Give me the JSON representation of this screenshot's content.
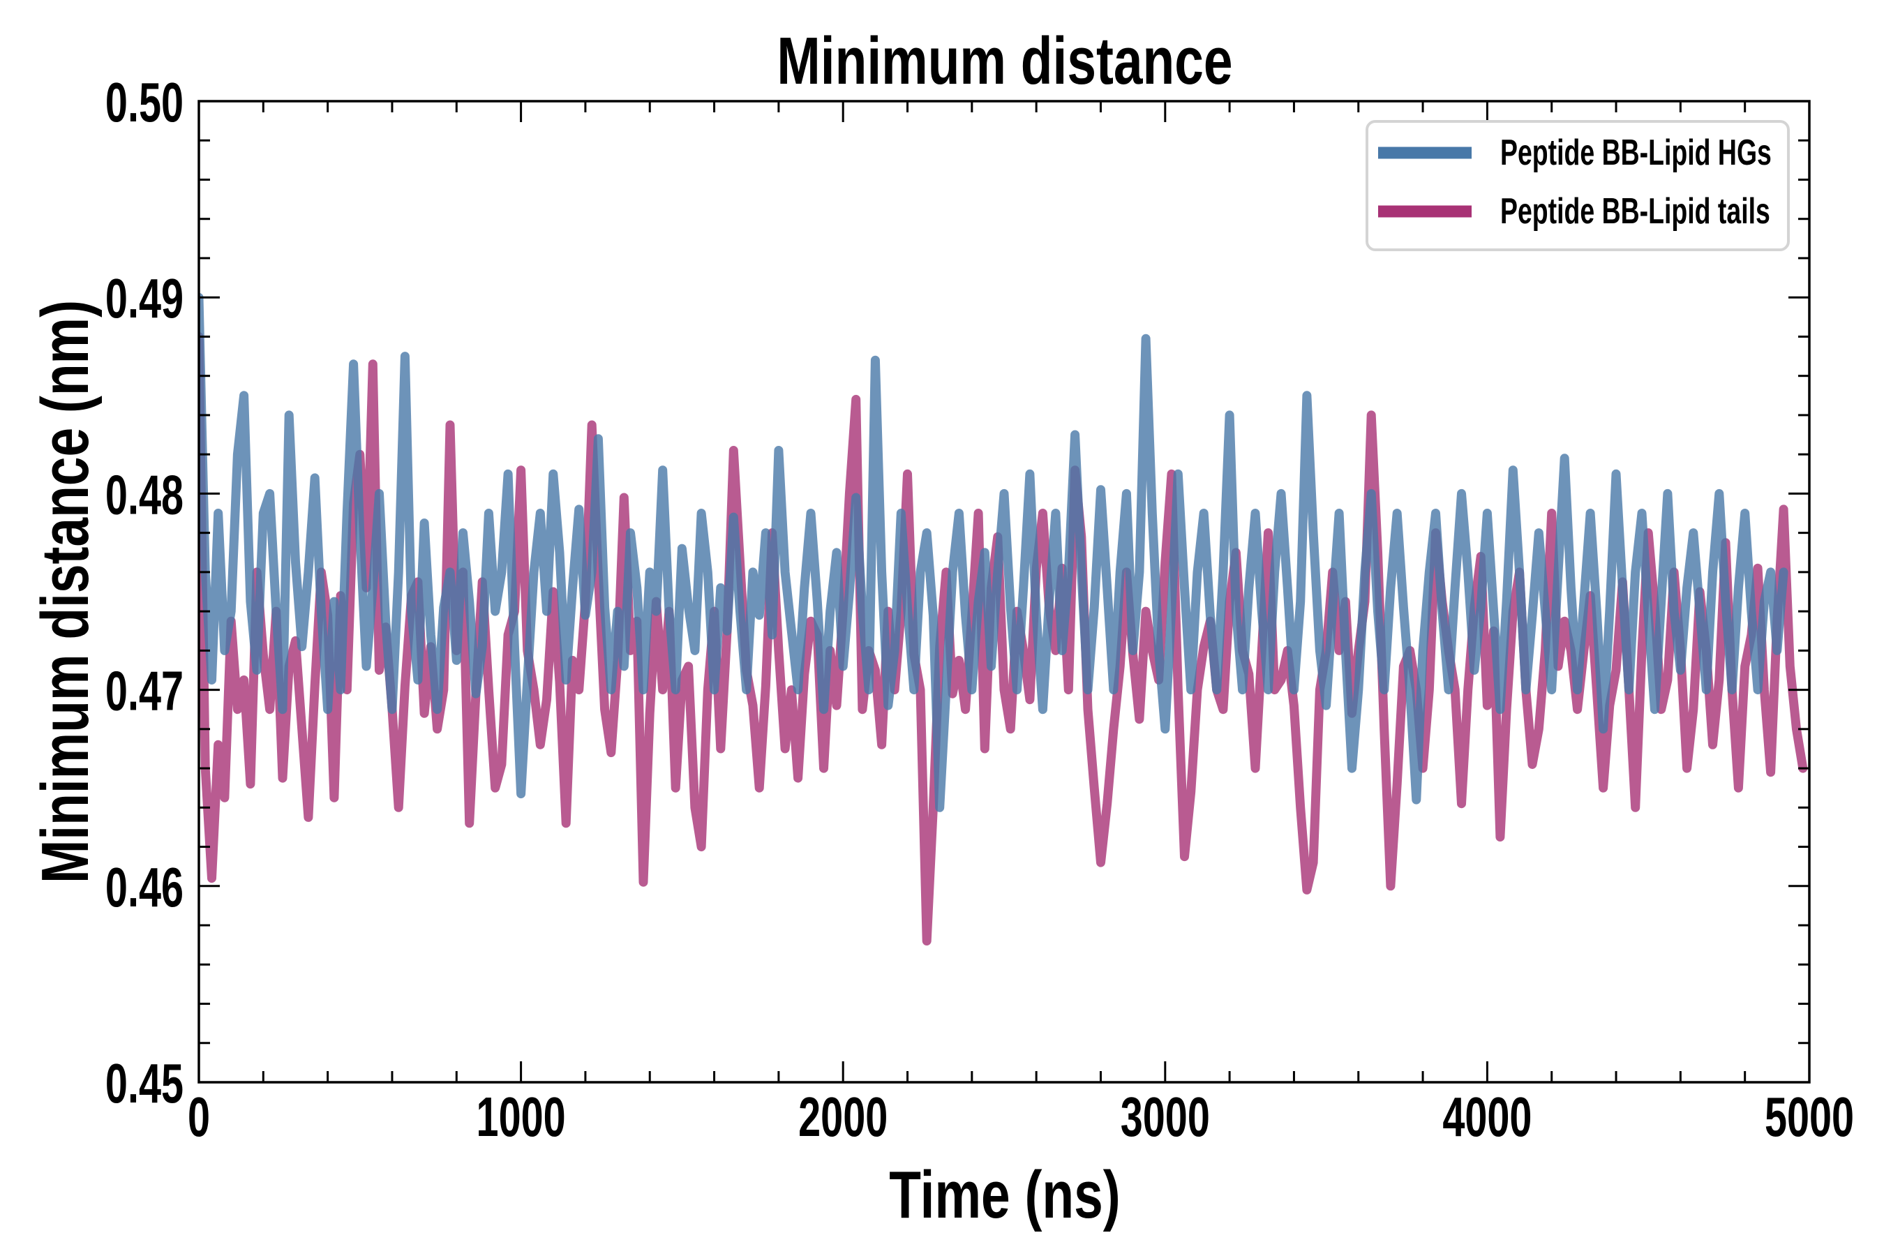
{
  "chart_data": {
    "type": "line",
    "title": "Minimum distance",
    "xlabel": "Time (ns)",
    "ylabel": "Minimum distance (nm)",
    "xlim": [
      0,
      5000
    ],
    "ylim": [
      0.45,
      0.5
    ],
    "xticks": [
      0,
      1000,
      2000,
      3000,
      4000,
      5000
    ],
    "xtick_labels": [
      "0",
      "1000",
      "2000",
      "3000",
      "4000",
      "5000"
    ],
    "xminor_step": 200,
    "yticks": [
      0.45,
      0.46,
      0.47,
      0.48,
      0.49,
      0.5
    ],
    "ytick_labels": [
      "0.45",
      "0.46",
      "0.47",
      "0.48",
      "0.49",
      "0.50"
    ],
    "yminor_step": 0.002,
    "grid": false,
    "legend_position": "top-right",
    "x_start": 0,
    "x_step": 20,
    "series": [
      {
        "name": "Peptide BB-Lipid tails",
        "color": "#a83275",
        "alpha": 0.8,
        "values": [
          0.488,
          0.466,
          0.4604,
          0.4672,
          0.4645,
          0.4735,
          0.469,
          0.4705,
          0.4652,
          0.476,
          0.4718,
          0.469,
          0.474,
          0.4655,
          0.4712,
          0.4725,
          0.468,
          0.4635,
          0.4702,
          0.476,
          0.4738,
          0.4645,
          0.4748,
          0.47,
          0.4795,
          0.482,
          0.4752,
          0.4866,
          0.471,
          0.4732,
          0.469,
          0.464,
          0.4702,
          0.4748,
          0.4755,
          0.4688,
          0.4722,
          0.468,
          0.47,
          0.4835,
          0.472,
          0.476,
          0.4632,
          0.4698,
          0.4755,
          0.47,
          0.465,
          0.4662,
          0.4728,
          0.474,
          0.4812,
          0.472,
          0.47,
          0.4672,
          0.4695,
          0.475,
          0.4704,
          0.4632,
          0.4715,
          0.47,
          0.4745,
          0.4835,
          0.4758,
          0.469,
          0.4668,
          0.4715,
          0.4798,
          0.472,
          0.4735,
          0.4602,
          0.4688,
          0.4745,
          0.47,
          0.474,
          0.465,
          0.4705,
          0.4712,
          0.464,
          0.462,
          0.47,
          0.474,
          0.467,
          0.473,
          0.4822,
          0.4765,
          0.471,
          0.4692,
          0.465,
          0.4702,
          0.478,
          0.472,
          0.467,
          0.47,
          0.4655,
          0.4708,
          0.4735,
          0.4728,
          0.466,
          0.472,
          0.4692,
          0.474,
          0.48,
          0.4848,
          0.469,
          0.472,
          0.471,
          0.4672,
          0.474,
          0.47,
          0.474,
          0.481,
          0.4718,
          0.47,
          0.4572,
          0.464,
          0.4722,
          0.476,
          0.4698,
          0.4715,
          0.469,
          0.4738,
          0.479,
          0.467,
          0.4752,
          0.4778,
          0.47,
          0.468,
          0.474,
          0.472,
          0.4695,
          0.4762,
          0.479,
          0.4742,
          0.472,
          0.4762,
          0.47,
          0.4812,
          0.4778,
          0.469,
          0.465,
          0.4612,
          0.4642,
          0.468,
          0.4712,
          0.476,
          0.4718,
          0.4685,
          0.474,
          0.472,
          0.4705,
          0.4765,
          0.481,
          0.47,
          0.4615,
          0.4648,
          0.47,
          0.4722,
          0.4735,
          0.47,
          0.469,
          0.4745,
          0.477,
          0.472,
          0.4708,
          0.466,
          0.472,
          0.478,
          0.47,
          0.4705,
          0.472,
          0.4692,
          0.464,
          0.4598,
          0.4612,
          0.47,
          0.472,
          0.476,
          0.472,
          0.4745,
          0.4688,
          0.472,
          0.4745,
          0.484,
          0.477,
          0.468,
          0.46,
          0.4652,
          0.4712,
          0.472,
          0.47,
          0.466,
          0.47,
          0.478,
          0.4745,
          0.472,
          0.47,
          0.4642,
          0.47,
          0.4742,
          0.4768,
          0.4692,
          0.473,
          0.4625,
          0.469,
          0.474,
          0.476,
          0.47,
          0.4662,
          0.468,
          0.472,
          0.479,
          0.4712,
          0.4735,
          0.472,
          0.469,
          0.472,
          0.4748,
          0.47,
          0.465,
          0.4692,
          0.471,
          0.4755,
          0.47,
          0.464,
          0.472,
          0.478,
          0.4742,
          0.469,
          0.4705,
          0.476,
          0.472,
          0.466,
          0.469,
          0.475,
          0.472,
          0.4672,
          0.4705,
          0.4775,
          0.47,
          0.465,
          0.4712,
          0.4728,
          0.4762,
          0.47,
          0.4658,
          0.4735,
          0.4792,
          0.4712,
          0.468,
          0.466
        ]
      },
      {
        "name": "Peptide BB-Lipid HGs",
        "color": "#4878a8",
        "alpha": 0.8,
        "values": [
          0.49,
          0.476,
          0.4705,
          0.479,
          0.472,
          0.474,
          0.482,
          0.485,
          0.4745,
          0.471,
          0.479,
          0.48,
          0.474,
          0.469,
          0.484,
          0.4765,
          0.4722,
          0.476,
          0.4808,
          0.474,
          0.469,
          0.4745,
          0.47,
          0.479,
          0.4866,
          0.478,
          0.4712,
          0.4752,
          0.48,
          0.4735,
          0.469,
          0.476,
          0.487,
          0.474,
          0.4705,
          0.4785,
          0.4728,
          0.469,
          0.4742,
          0.476,
          0.4715,
          0.478,
          0.4745,
          0.4698,
          0.4722,
          0.479,
          0.474,
          0.476,
          0.481,
          0.4722,
          0.4647,
          0.4705,
          0.476,
          0.479,
          0.474,
          0.481,
          0.477,
          0.4705,
          0.4752,
          0.4792,
          0.4738,
          0.476,
          0.4828,
          0.4742,
          0.47,
          0.474,
          0.4712,
          0.478,
          0.4752,
          0.47,
          0.476,
          0.474,
          0.4812,
          0.474,
          0.47,
          0.4772,
          0.4742,
          0.472,
          0.479,
          0.476,
          0.47,
          0.4752,
          0.473,
          0.4788,
          0.474,
          0.47,
          0.476,
          0.4738,
          0.478,
          0.4728,
          0.4822,
          0.476,
          0.473,
          0.47,
          0.4752,
          0.479,
          0.4745,
          0.469,
          0.474,
          0.477,
          0.4712,
          0.475,
          0.4798,
          0.474,
          0.47,
          0.4868,
          0.476,
          0.4692,
          0.472,
          0.479,
          0.4742,
          0.47,
          0.476,
          0.478,
          0.4738,
          0.464,
          0.47,
          0.476,
          0.479,
          0.4738,
          0.47,
          0.4745,
          0.477,
          0.4712,
          0.476,
          0.48,
          0.4742,
          0.47,
          0.4752,
          0.481,
          0.4738,
          0.469,
          0.4745,
          0.479,
          0.472,
          0.476,
          0.483,
          0.476,
          0.47,
          0.4742,
          0.4802,
          0.4752,
          0.47,
          0.476,
          0.48,
          0.472,
          0.476,
          0.4879,
          0.479,
          0.472,
          0.468,
          0.4742,
          0.481,
          0.4752,
          0.47,
          0.476,
          0.479,
          0.4738,
          0.47,
          0.476,
          0.484,
          0.474,
          0.47,
          0.4752,
          0.479,
          0.474,
          0.47,
          0.476,
          0.48,
          0.4752,
          0.47,
          0.4745,
          0.485,
          0.478,
          0.472,
          0.4692,
          0.4742,
          0.479,
          0.472,
          0.466,
          0.47,
          0.476,
          0.48,
          0.474,
          0.47,
          0.4752,
          0.479,
          0.4742,
          0.47,
          0.4644,
          0.472,
          0.476,
          0.479,
          0.474,
          0.47,
          0.4752,
          0.48,
          0.476,
          0.471,
          0.4742,
          0.479,
          0.474,
          0.469,
          0.4745,
          0.4812,
          0.476,
          0.47,
          0.4738,
          0.478,
          0.474,
          0.47,
          0.476,
          0.4818,
          0.4752,
          0.47,
          0.4745,
          0.479,
          0.474,
          0.468,
          0.474,
          0.481,
          0.4752,
          0.47,
          0.476,
          0.479,
          0.4738,
          0.469,
          0.4745,
          0.48,
          0.474,
          0.471,
          0.4752,
          0.478,
          0.474,
          0.47,
          0.476,
          0.48,
          0.4745,
          0.47,
          0.4752,
          0.479,
          0.474,
          0.47,
          0.4745,
          0.476,
          0.472,
          0.476
        ]
      }
    ]
  }
}
